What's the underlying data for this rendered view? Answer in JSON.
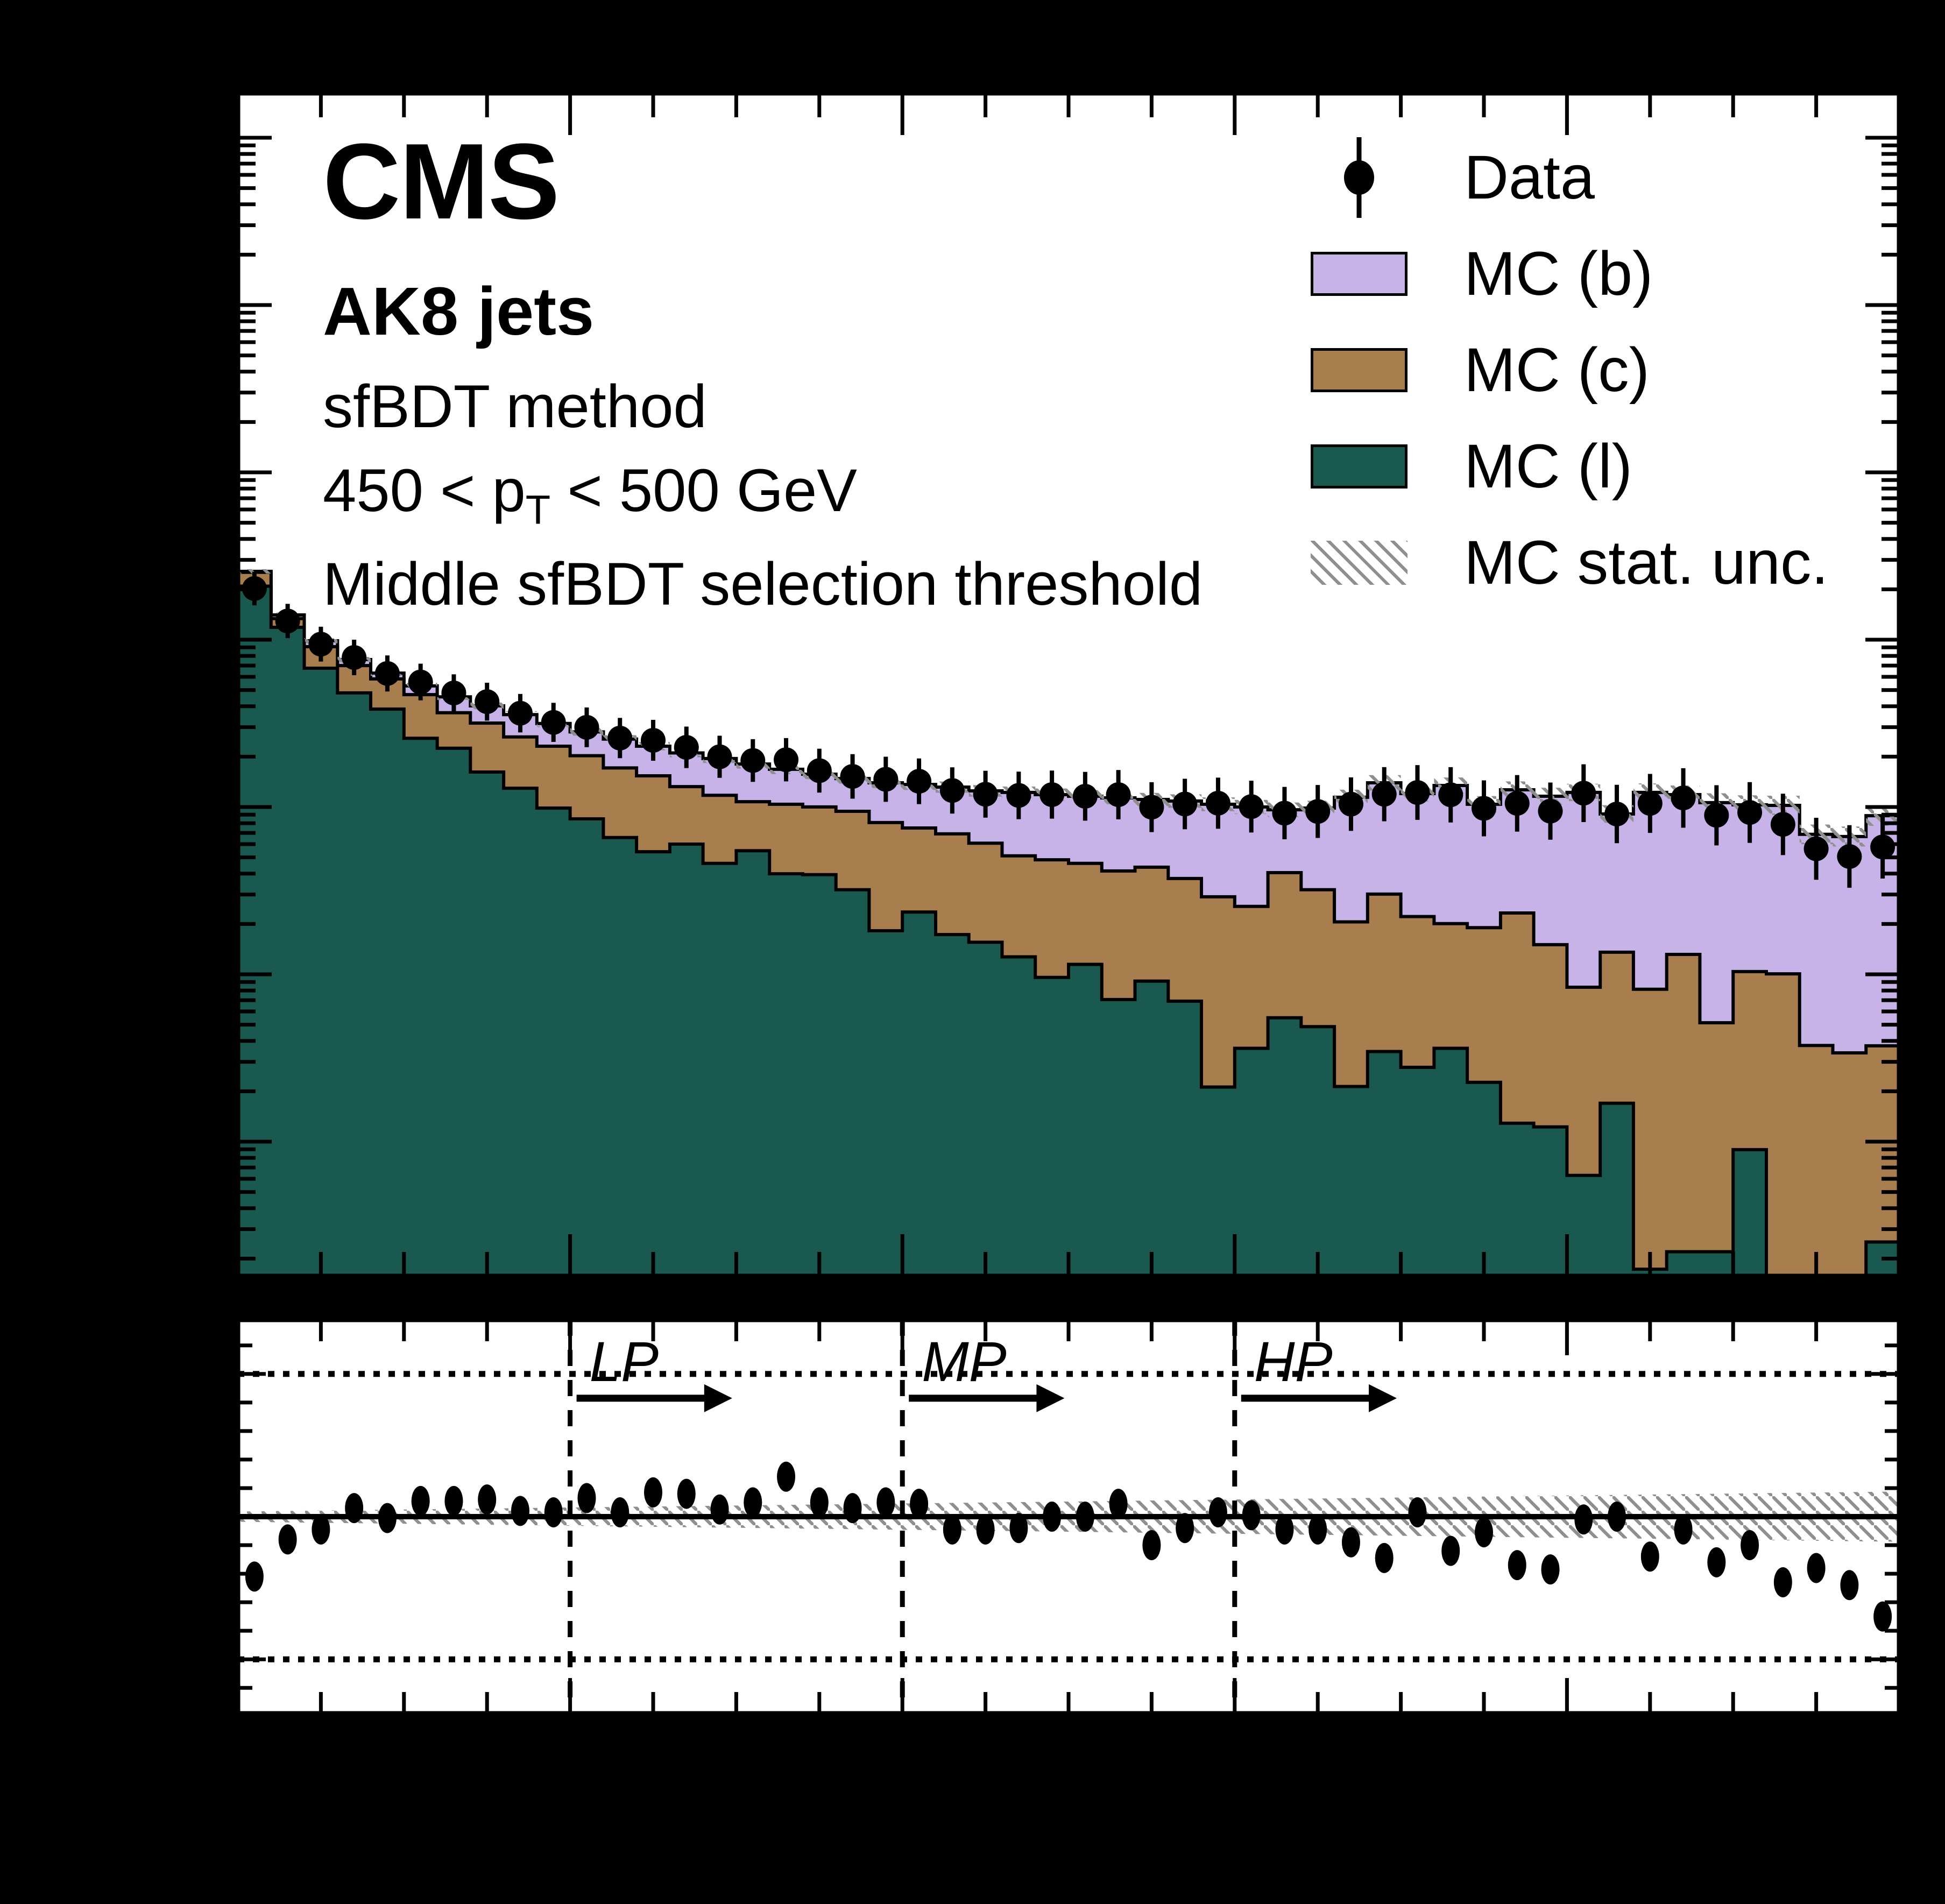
{
  "header": {
    "experiment": "CMS",
    "jet_label": "AK8 jets",
    "method": "sfBDT method",
    "pt_prefix": "450 < p",
    "pt_sub": "T",
    "pt_suffix": " < 500 GeV",
    "selection": "Middle sfBDT selection threshold"
  },
  "legend": {
    "data_label": "Data",
    "mc_b_label": "MC (b)",
    "mc_c_label": "MC (c)",
    "mc_l_label": "MC (l)",
    "stat_label": "MC stat. unc."
  },
  "colors": {
    "mc_b": "#c7b3e8",
    "mc_c": "#a87e4e",
    "mc_l": "#1a5950",
    "hatch": "#8f8f8f",
    "data": "#000000",
    "frame": "#000000",
    "panel_bg": "#ffffff",
    "page_bg": "#000000"
  },
  "chart_data": {
    "type": "bar",
    "subtype": "stacked-histogram-with-ratio",
    "title": "CMS AK8 jets, sfBDT method, 450 < pT < 500 GeV, middle sfBDT selection threshold",
    "xlabel": "",
    "ylabel": "",
    "x_axis": {
      "min": 0.0,
      "max": 1.0,
      "minor_tick": 0.05,
      "major_tick": 0.2,
      "labels_visible": false
    },
    "y_axis": {
      "scale": "log",
      "labels_visible": false,
      "arbitrary_units": true,
      "grid": false
    },
    "ratio_axis": {
      "min": 0.31,
      "max": 1.69,
      "solid_line": 1.0,
      "dotted_lines": [
        0.5,
        1.5
      ],
      "minor_tick": 0.1,
      "labels_visible": false
    },
    "n_bins": 50,
    "bin_width": 0.02,
    "legend_position": "top-right",
    "series": [
      {
        "name": "MC (l)",
        "role": "cumulative-top-of-l",
        "values": [
          13300,
          7550,
          4300,
          3060,
          2450,
          1640,
          1430,
          1030,
          824,
          627,
          541,
          418,
          344,
          382,
          293,
          349,
          254,
          251,
          204,
          116,
          150,
          110,
          99,
          81,
          61,
          73,
          45,
          58,
          44,
          13.5,
          23,
          35,
          31,
          13.6,
          22,
          17.7,
          23,
          14.4,
          8.2,
          7.8,
          4.0,
          10.8,
          1.1,
          1.4,
          1.4,
          5.7,
          0.9,
          0.85,
          0.8,
          1.6
        ]
      },
      {
        "name": "MC (c)",
        "role": "cumulative-top-of-l-plus-c",
        "values": [
          16100,
          8510,
          5780,
          4460,
          3710,
          2990,
          2330,
          2020,
          1670,
          1470,
          1290,
          1090,
          978,
          843,
          748,
          685,
          661,
          637,
          600,
          514,
          477,
          440,
          387,
          325,
          308,
          293,
          264,
          278,
          238,
          185,
          162,
          258,
          204,
          131,
          192,
          141,
          128,
          121,
          148,
          95.7,
          53.3,
          86.3,
          51.8,
          83.7,
          32.7,
          66.1,
          64.1,
          23.9,
          21.6,
          23.8
        ]
      },
      {
        "name": "MC (b)",
        "role": "cumulative-top-of-total-mc",
        "values": [
          16300,
          8950,
          6270,
          4840,
          4020,
          3370,
          2900,
          2560,
          2270,
          2010,
          1790,
          1620,
          1470,
          1340,
          1240,
          1150,
          1070,
          1000,
          942,
          888,
          868,
          837,
          795,
          778,
          755,
          738,
          722,
          706,
          691,
          661,
          637,
          613,
          627,
          728,
          888,
          766,
          856,
          661,
          807,
          738,
          778,
          578,
          778,
          755,
          676,
          656,
          651,
          437,
          424,
          565
        ]
      }
    ],
    "data_over_mc_ratio": [
      0.79,
      0.92,
      0.955,
      1.03,
      0.995,
      1.055,
      1.055,
      1.06,
      1.02,
      1.015,
      1.065,
      1.015,
      1.085,
      1.08,
      1.025,
      1.05,
      1.14,
      1.05,
      1.03,
      1.05,
      1.045,
      0.955,
      0.955,
      0.96,
      1.0,
      1.0,
      1.045,
      0.9,
      0.96,
      1.015,
      1.005,
      0.955,
      0.955,
      0.91,
      0.855,
      1.015,
      0.88,
      0.945,
      0.83,
      0.815,
      0.99,
      1.0,
      0.86,
      0.955,
      0.84,
      0.9,
      0.77,
      0.82,
      0.76,
      0.65
    ],
    "mc_stat_band": {
      "halfwidth_ratio_left": 0.018,
      "halfwidth_ratio_right": 0.088
    },
    "thresholds": [
      {
        "label": "LP",
        "x": 0.2
      },
      {
        "label": "MP",
        "x": 0.4
      },
      {
        "label": "HP",
        "x": 0.6
      }
    ]
  }
}
